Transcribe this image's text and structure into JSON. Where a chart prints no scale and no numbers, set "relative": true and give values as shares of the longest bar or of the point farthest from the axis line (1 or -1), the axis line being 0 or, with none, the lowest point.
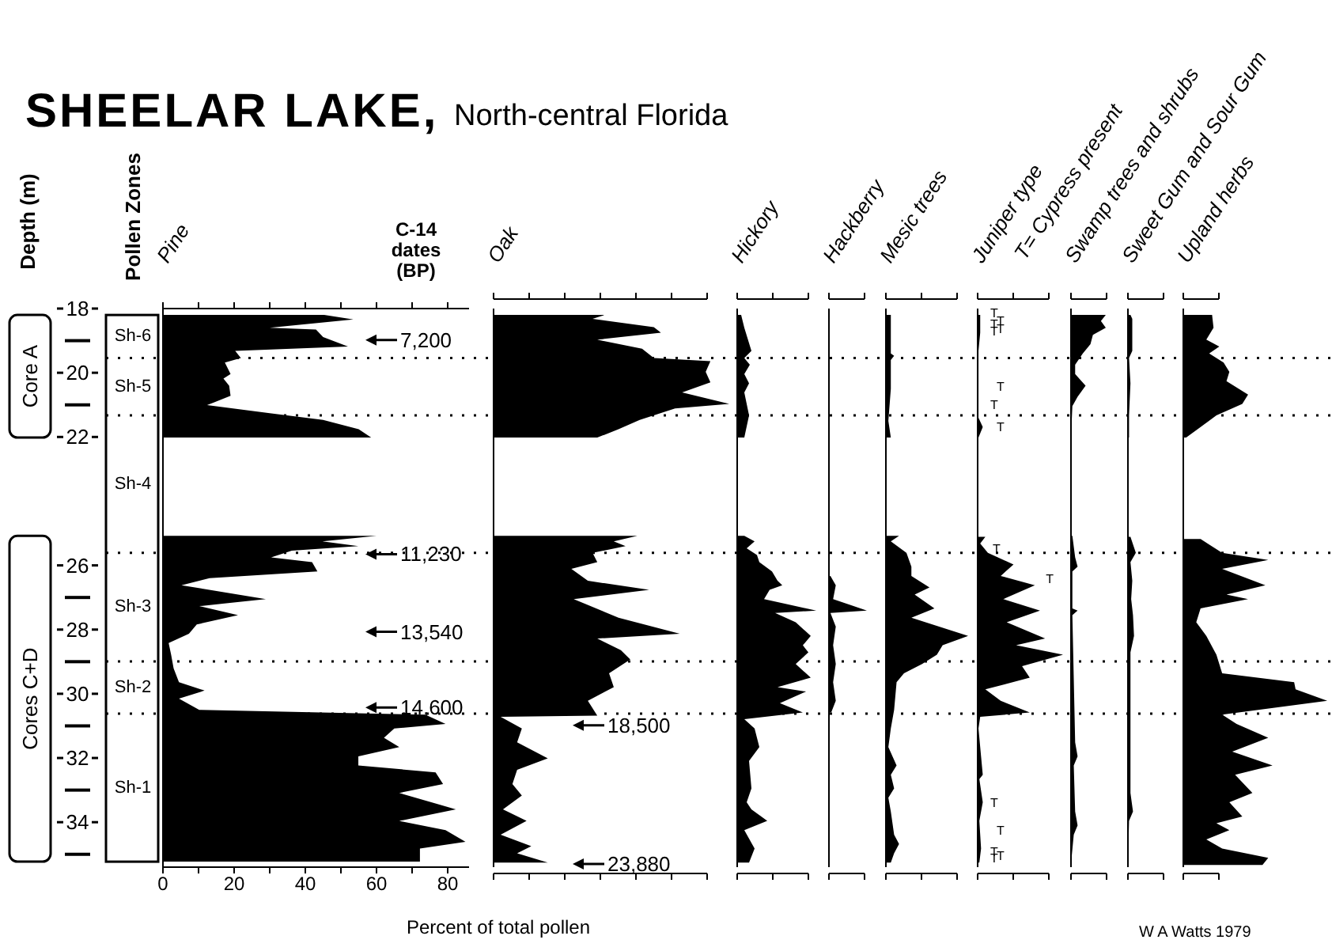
{
  "chart_data": [
    {
      "type": "other",
      "title": "SHEELAR LAKE,",
      "subtitle": "North-central Florida",
      "annotations": [
        "W A Watts 1979"
      ]
    },
    {
      "type": "area",
      "orientation": "horizontal",
      "title": "Pine",
      "xlabel": "Percent of total pollen",
      "ylabel": "Depth (m)",
      "color": "#000000",
      "xlim": [
        0,
        86
      ],
      "xticks": [
        0,
        {
          "value": 10,
          "label": null
        },
        20,
        {
          "value": 30,
          "label": null
        },
        40,
        {
          "value": 50,
          "label": null
        },
        60,
        {
          "value": 70,
          "label": null
        },
        80
      ],
      "ylim": [
        35.4,
        18
      ],
      "yticks": [
        18,
        20,
        22,
        26,
        28,
        30,
        32,
        34
      ],
      "x": [
        18.2,
        18.34,
        18.6,
        18.65,
        18.89,
        19.18,
        19.32,
        19.54,
        19.68,
        20.04,
        20.18,
        20.4,
        20.72,
        21.01,
        21.26,
        21.47,
        21.76,
        22.02,
        23.5,
        25.08,
        25.25,
        25.4,
        25.54,
        25.75,
        25.9,
        26.19,
        26.4,
        26.62,
        27.05,
        27.27,
        27.55,
        27.84,
        28.13,
        28.42,
        28.78,
        29.21,
        29.64,
        29.9,
        30.15,
        30.5,
        30.65,
        30.94,
        31.08,
        31.37,
        31.66,
        31.95,
        32.23,
        32.45,
        32.81,
        33.09,
        33.6,
        33.96,
        34.25,
        34.61,
        34.82,
        35.23
      ],
      "values": [
        45.3,
        53.5,
        30,
        43,
        45,
        52,
        20.3,
        21.9,
        17.4,
        19,
        17,
        18.6,
        19,
        12.4,
        30,
        45,
        55,
        58.5,
        null,
        60,
        44.8,
        54.9,
        36.2,
        30.4,
        41.9,
        43.4,
        13.1,
        5.2,
        28.9,
        10.2,
        21.1,
        9.5,
        7.3,
        1.6,
        2.3,
        3,
        4.5,
        11.7,
        4.5,
        10.2,
        73.7,
        79.4,
        65,
        62.1,
        66.4,
        54.9,
        54.9,
        76.6,
        78.7,
        66.4,
        82.3,
        66.4,
        79.4,
        85,
        72.2,
        72.2
      ],
      "ref_lines": [
        {
          "axis": "y",
          "value": 19.54,
          "line_style": "dotted"
        },
        {
          "axis": "y",
          "value": 21.33,
          "line_style": "dotted"
        },
        {
          "axis": "y",
          "value": 25.61,
          "line_style": "dotted"
        },
        {
          "axis": "y",
          "value": 28.99,
          "line_style": "dotted"
        },
        {
          "axis": "y",
          "value": 30.62,
          "line_style": "dotted"
        }
      ],
      "annotations": [
        "Pollen Zones",
        "C-14 dates (BP)",
        "Sh-6",
        "Sh-5",
        "Sh-4",
        "Sh-3",
        "Sh-2",
        "Sh-1",
        "Core A",
        "Cores C+D",
        "7,200",
        "11,230",
        "13,540",
        "14,600"
      ]
    },
    {
      "type": "area",
      "orientation": "horizontal",
      "relative": true,
      "title": "Oak",
      "color": "#000000",
      "ylim": [
        35.4,
        18
      ],
      "tick_labels": false,
      "x": [
        18.2,
        18.32,
        18.58,
        18.75,
        18.97,
        19.25,
        19.54,
        19.64,
        19.97,
        20.3,
        20.61,
        20.97,
        21.11,
        21.47,
        21.76,
        22.02,
        23.5,
        25.08,
        25.25,
        25.4,
        25.61,
        25.9,
        26.11,
        26.48,
        26.76,
        27.05,
        27.63,
        28.13,
        28.28,
        28.64,
        28.93,
        29.36,
        29.79,
        30.22,
        30.68,
        30.72,
        31.08,
        31.51,
        32.01,
        32.37,
        32.81,
        33.17,
        33.6,
        33.96,
        34.39,
        34.75,
        34.97,
        35.26
      ],
      "values": [
        0.47,
        0.42,
        0.68,
        0.71,
        0.44,
        0.63,
        0.68,
        0.92,
        0.9,
        0.92,
        0.8,
        1,
        0.77,
        0.62,
        0.53,
        0.44,
        null,
        0.61,
        0.51,
        0.56,
        0.42,
        0.44,
        0.33,
        0.4,
        0.66,
        0.34,
        0.53,
        0.79,
        0.44,
        0.54,
        0.58,
        0.49,
        0.51,
        0.4,
        0.44,
        0.03,
        0.12,
        0.1,
        0.23,
        0.1,
        0.08,
        0.12,
        0.04,
        0.14,
        0.03,
        0.16,
        0.1,
        0.23
      ],
      "annotations": [
        "18,500",
        "23,880"
      ]
    },
    {
      "type": "area",
      "orientation": "horizontal",
      "relative": true,
      "title": "Hickory",
      "color": "#000000",
      "ylim": [
        35.4,
        18
      ],
      "tick_labels": false,
      "x": [
        18.2,
        18.6,
        19.32,
        19.54,
        19.75,
        20.04,
        20.33,
        20.61,
        20.97,
        21.33,
        22.02,
        23.5,
        25.08,
        25.25,
        25.47,
        25.68,
        25.9,
        26.19,
        26.48,
        26.62,
        26.76,
        27.05,
        27.41,
        27.48,
        27.77,
        28.2,
        28.49,
        28.71,
        29.07,
        29.5,
        29.79,
        29.93,
        30.29,
        30.58,
        30.79,
        31.08,
        31.66,
        32.09,
        32.95,
        33.38,
        33.6,
        33.96,
        34.25,
        34.82,
        35.26
      ],
      "values": [
        0.05,
        0.09,
        0.18,
        0.09,
        0.16,
        0.09,
        0.15,
        0.09,
        0.12,
        0.15,
        0.09,
        null,
        0.09,
        0.22,
        0.12,
        0.25,
        0.28,
        0.44,
        0.51,
        0.57,
        0.41,
        0.34,
        1,
        0.48,
        0.74,
        0.93,
        0.83,
        0.9,
        0.74,
        0.93,
        0.51,
        0.87,
        0.54,
        0.83,
        0.09,
        0.22,
        0.28,
        0.15,
        0.18,
        0.12,
        0.18,
        0.38,
        0.09,
        0.22,
        0.15
      ]
    },
    {
      "type": "area",
      "orientation": "horizontal",
      "relative": true,
      "title": "Hackberry",
      "color": "#000000",
      "ylim": [
        35.4,
        18
      ],
      "tick_labels": false,
      "x": [
        26.33,
        26.62,
        27.05,
        27.41,
        27.48,
        27.91,
        28.49,
        29.07,
        29.64,
        30.22,
        30.58
      ],
      "values": [
        0.04,
        0.18,
        0.11,
        1,
        0.04,
        0.18,
        0.11,
        0.18,
        0.11,
        0.18,
        0.06
      ]
    },
    {
      "type": "area",
      "orientation": "horizontal",
      "relative": true,
      "title": "Mesic trees",
      "color": "#000000",
      "ylim": [
        35.4,
        18
      ],
      "tick_labels": false,
      "x": [
        18.2,
        19.4,
        19.47,
        19.6,
        20.5,
        21.5,
        22.02,
        23.5,
        25.08,
        25.25,
        25.61,
        26.04,
        26.33,
        26.69,
        26.91,
        27.34,
        27.63,
        28.2,
        28.49,
        28.78,
        29.07,
        29.36,
        29.64,
        30.5,
        31.08,
        31.66,
        32.23,
        32.52,
        32.95,
        33.24,
        33.67,
        34.39,
        34.68,
        34.97,
        35.26
      ],
      "values": [
        0.06,
        0.06,
        0.1,
        0.06,
        0.06,
        0.03,
        0.06,
        null,
        0.16,
        0.06,
        0.25,
        0.31,
        0.31,
        0.53,
        0.35,
        0.59,
        0.31,
        1,
        0.69,
        0.62,
        0.44,
        0.22,
        0.13,
        0.1,
        0.06,
        0.03,
        0.13,
        0.06,
        0.1,
        0.03,
        0.06,
        0.1,
        0.16,
        0.1,
        0.06
      ]
    },
    {
      "type": "area",
      "orientation": "horizontal",
      "relative": true,
      "title": "Juniper type",
      "subtitle": "T= Cypress present",
      "color": "#000000",
      "ylim": [
        35.4,
        18
      ],
      "tick_labels": false,
      "x": [
        18.2,
        18.75,
        19.32,
        20.4,
        21.4,
        21.69,
        22.02,
        23.5,
        25.11,
        25.32,
        25.61,
        25.97,
        26.33,
        26.62,
        27.05,
        27.41,
        27.77,
        28.28,
        28.49,
        28.78,
        29.14,
        29.5,
        29.86,
        30.22,
        30.58,
        30.72,
        31.08,
        31.95,
        32.52,
        32.66,
        33.38,
        33.96,
        34.82,
        35.26
      ],
      "values": [
        0.03,
        0.03,
        0.01,
        0.01,
        0.01,
        0.06,
        0.01,
        null,
        0.09,
        0.03,
        0.12,
        0.42,
        0.27,
        0.67,
        0.3,
        0.73,
        0.34,
        0.79,
        0.45,
        1,
        0.52,
        0.61,
        0.09,
        0.27,
        0.61,
        0.03,
        0.01,
        0.04,
        0.06,
        0.02,
        0.06,
        0.02,
        0.04,
        0.02
      ],
      "annotations": [
        "T",
        "T",
        "T",
        "T",
        "T",
        "T",
        "T",
        "T",
        "T",
        "T",
        "T",
        "T",
        "T",
        "T",
        "T"
      ]
    },
    {
      "type": "area",
      "orientation": "horizontal",
      "relative": true,
      "title": "Swamp trees and shrubs",
      "color": "#000000",
      "ylim": [
        35.4,
        18
      ],
      "tick_labels": false,
      "x": [
        18.2,
        18.39,
        18.6,
        18.82,
        19.11,
        19.4,
        19.75,
        20.04,
        20.4,
        20.75,
        21.04,
        22.02,
        23.5,
        25.08,
        25.75,
        26.04,
        26.19,
        27.34,
        27.41,
        27.55,
        31.51,
        31.95,
        32.23,
        33.67,
        34.1,
        34.39,
        35.3
      ],
      "values": [
        1,
        0.86,
        1,
        0.63,
        0.56,
        0.34,
        0.12,
        0.12,
        0.42,
        0.19,
        0.04,
        0,
        null,
        0.04,
        0.12,
        0.19,
        0.04,
        0.04,
        0.19,
        0.04,
        0.12,
        0.19,
        0.08,
        0.12,
        0.19,
        0.08,
        0
      ]
    },
    {
      "type": "area",
      "orientation": "horizontal",
      "relative": true,
      "title": "Sweet Gum and Sour Gum",
      "color": "#000000",
      "ylim": [
        35.4,
        18
      ],
      "tick_labels": false,
      "x": [
        18.2,
        18.32,
        19.32,
        19.54,
        20.33,
        21.33,
        22.02,
        23.5,
        25.11,
        25.61,
        25.9,
        26.48,
        27.05,
        27.55,
        28.2,
        28.71,
        33.09,
        33.67,
        33.96,
        35.3
      ],
      "values": [
        0.32,
        0.55,
        0.55,
        0.14,
        0.32,
        0.14,
        0.14,
        null,
        0.32,
        1,
        0.32,
        0.55,
        0.41,
        0.64,
        0.77,
        0.32,
        0.32,
        0.64,
        0.14,
        0
      ]
    },
    {
      "type": "area",
      "orientation": "horizontal",
      "relative": true,
      "title": "Upland herbs",
      "color": "#000000",
      "ylim": [
        35.4,
        18
      ],
      "tick_labels": false,
      "x": [
        18.2,
        18.6,
        18.97,
        19.18,
        19.4,
        19.68,
        19.97,
        20.26,
        20.68,
        20.97,
        21.33,
        21.69,
        22.02,
        23.5,
        25.18,
        25.61,
        25.83,
        26.11,
        26.62,
        26.91,
        27.05,
        27.34,
        27.77,
        28.2,
        28.78,
        29.36,
        29.64,
        29.86,
        30.22,
        30.65,
        30.94,
        31.37,
        31.8,
        32.23,
        32.52,
        33.09,
        33.38,
        33.82,
        34.03,
        34.25,
        34.54,
        34.82,
        35.11,
        35.33
      ],
      "values": [
        0.2,
        0.21,
        0.16,
        0.25,
        0.18,
        0.28,
        0.32,
        0.3,
        0.45,
        0.41,
        0.23,
        0.12,
        0.02,
        null,
        0.12,
        0.27,
        0.59,
        0.27,
        0.57,
        0.3,
        0.45,
        0.12,
        0.09,
        0.16,
        0.23,
        0.27,
        0.77,
        0.78,
        1,
        0.27,
        0.37,
        0.59,
        0.34,
        0.62,
        0.36,
        0.48,
        0.32,
        0.41,
        0.23,
        0.32,
        0.16,
        0.27,
        0.59,
        0.55
      ]
    }
  ]
}
